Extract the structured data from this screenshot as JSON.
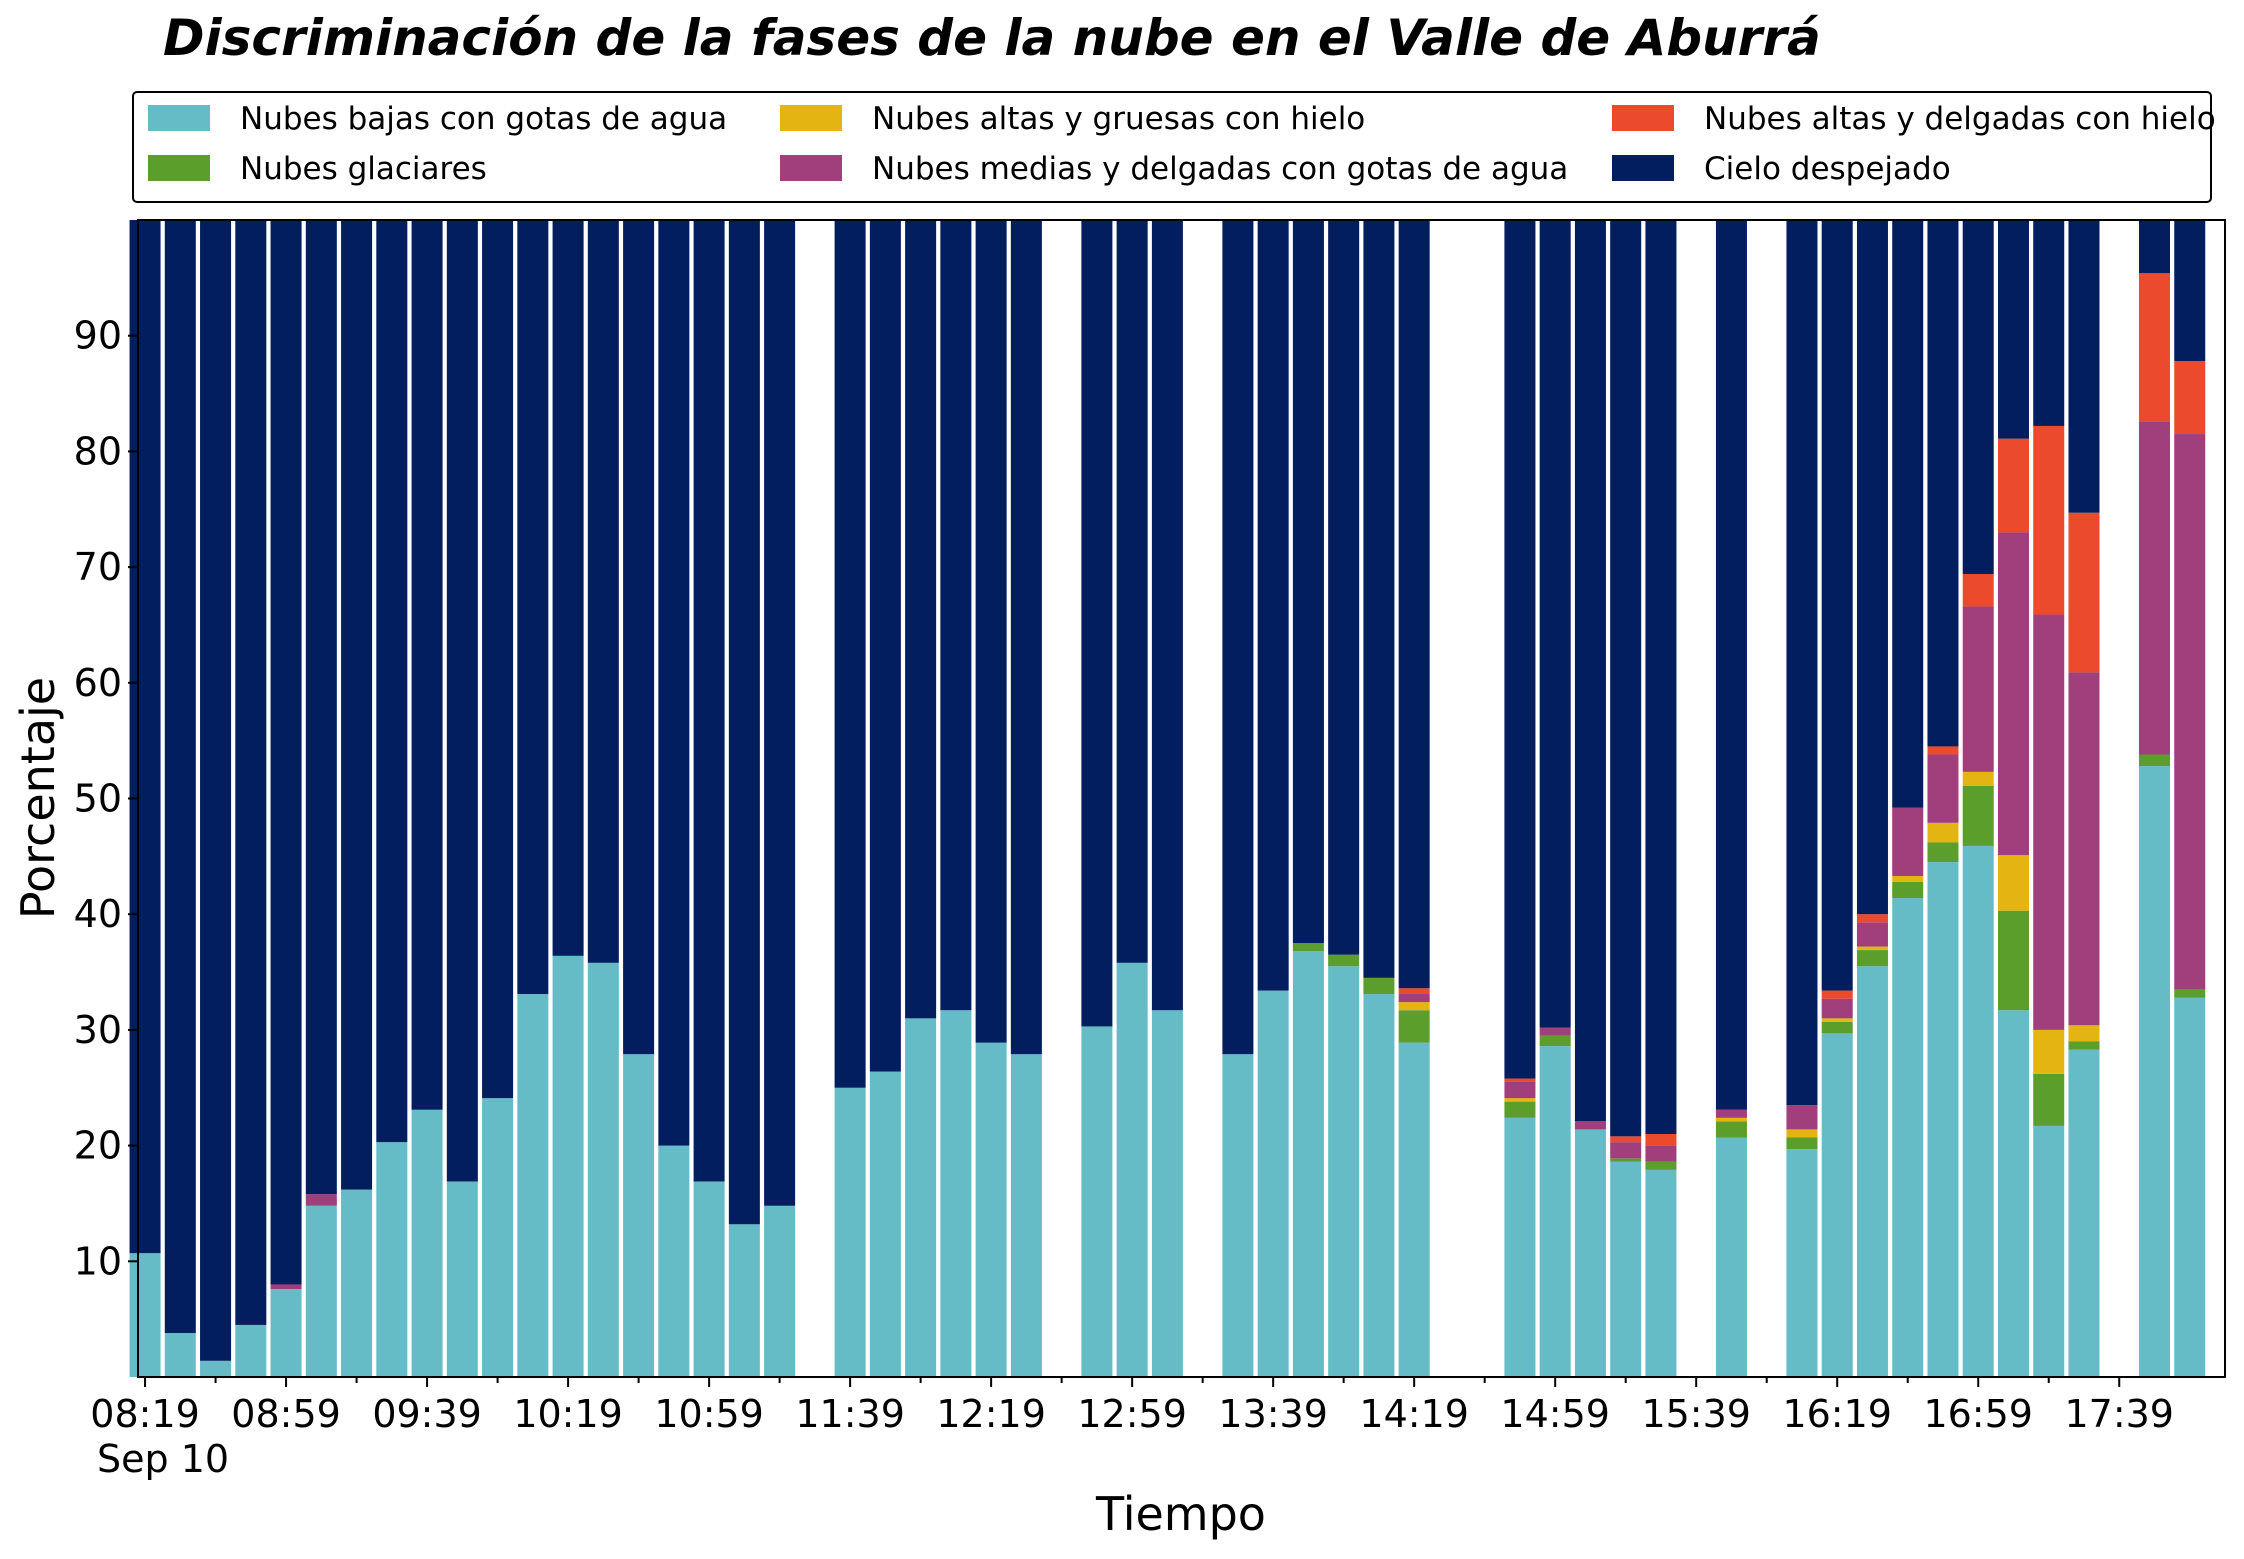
{
  "chart_data": {
    "type": "bar",
    "stacked": true,
    "title": "Discriminación de la fases de la nube en el Valle de Aburrá",
    "xlabel": "Tiempo",
    "ylabel": "Porcentaje",
    "x_date_label": "Sep 10",
    "ylim": [
      0,
      100
    ],
    "y_ticks": [
      10,
      20,
      30,
      40,
      50,
      60,
      70,
      80,
      90
    ],
    "x_tick_labels": [
      "08:19",
      "08:59",
      "09:39",
      "10:19",
      "10:59",
      "11:39",
      "12:19",
      "12:59",
      "13:39",
      "14:19",
      "14:59",
      "15:39",
      "16:19",
      "16:59",
      "17:39"
    ],
    "x_tick_minutes": [
      499,
      539,
      579,
      619,
      659,
      699,
      739,
      779,
      819,
      859,
      899,
      939,
      979,
      1019,
      1059
    ],
    "x_range_minutes": [
      497,
      1089
    ],
    "legend_position": "top",
    "grid": false,
    "series": [
      {
        "name": "Nubes bajas con gotas de agua",
        "color": "#65BCC7"
      },
      {
        "name": "Nubes glaciares",
        "color": "#5B9E2B"
      },
      {
        "name": "Nubes altas y gruesas con hielo",
        "color": "#E4B412"
      },
      {
        "name": "Nubes medias y delgadas con gotas de agua",
        "color": "#A03F7B"
      },
      {
        "name": "Nubes altas y delgadas con hielo",
        "color": "#EB4A2C"
      },
      {
        "name": "Cielo despejado",
        "color": "#031E5E"
      }
    ],
    "bars": [
      {
        "t": "08:19",
        "values": [
          10.7,
          0,
          0,
          0,
          0,
          89.3
        ]
      },
      {
        "t": "08:29",
        "values": [
          3.8,
          0,
          0,
          0,
          0,
          96.2
        ]
      },
      {
        "t": "08:39",
        "values": [
          1.4,
          0,
          0,
          0,
          0,
          98.6
        ]
      },
      {
        "t": "08:49",
        "values": [
          4.5,
          0,
          0,
          0,
          0,
          95.5
        ]
      },
      {
        "t": "08:59",
        "values": [
          7.6,
          0,
          0,
          0.4,
          0,
          92.0
        ]
      },
      {
        "t": "09:09",
        "values": [
          14.8,
          0,
          0,
          1.0,
          0,
          84.2
        ]
      },
      {
        "t": "09:19",
        "values": [
          16.2,
          0,
          0,
          0,
          0,
          83.8
        ]
      },
      {
        "t": "09:29",
        "values": [
          20.3,
          0,
          0,
          0,
          0,
          79.7
        ]
      },
      {
        "t": "09:39",
        "values": [
          23.1,
          0,
          0,
          0,
          0,
          76.9
        ]
      },
      {
        "t": "09:49",
        "values": [
          16.9,
          0,
          0,
          0,
          0,
          83.1
        ]
      },
      {
        "t": "09:59",
        "values": [
          24.1,
          0,
          0,
          0,
          0,
          75.9
        ]
      },
      {
        "t": "10:09",
        "values": [
          33.1,
          0,
          0,
          0,
          0,
          66.9
        ]
      },
      {
        "t": "10:19",
        "values": [
          36.4,
          0,
          0,
          0,
          0,
          63.6
        ]
      },
      {
        "t": "10:29",
        "values": [
          35.8,
          0,
          0,
          0,
          0,
          64.2
        ]
      },
      {
        "t": "10:39",
        "values": [
          27.9,
          0,
          0,
          0,
          0,
          72.1
        ]
      },
      {
        "t": "10:49",
        "values": [
          20.0,
          0,
          0,
          0,
          0,
          80.0
        ]
      },
      {
        "t": "10:59",
        "values": [
          16.9,
          0,
          0,
          0,
          0,
          83.1
        ]
      },
      {
        "t": "11:09",
        "values": [
          13.2,
          0,
          0,
          0,
          0,
          86.8
        ]
      },
      {
        "t": "11:19",
        "values": [
          14.8,
          0,
          0,
          0,
          0,
          85.2
        ]
      },
      {
        "t": "11:39",
        "values": [
          25.0,
          0,
          0,
          0,
          0,
          75.0
        ]
      },
      {
        "t": "11:49",
        "values": [
          26.4,
          0,
          0,
          0,
          0,
          73.6
        ]
      },
      {
        "t": "11:59",
        "values": [
          31.0,
          0,
          0,
          0,
          0,
          69.0
        ]
      },
      {
        "t": "12:09",
        "values": [
          31.7,
          0,
          0,
          0,
          0,
          68.3
        ]
      },
      {
        "t": "12:19",
        "values": [
          28.9,
          0,
          0,
          0,
          0,
          71.1
        ]
      },
      {
        "t": "12:29",
        "values": [
          27.9,
          0,
          0,
          0,
          0,
          72.1
        ]
      },
      {
        "t": "12:49",
        "values": [
          30.3,
          0,
          0,
          0,
          0,
          69.7
        ]
      },
      {
        "t": "12:59",
        "values": [
          35.8,
          0,
          0,
          0,
          0,
          64.2
        ]
      },
      {
        "t": "13:09",
        "values": [
          31.7,
          0,
          0,
          0,
          0,
          68.3
        ]
      },
      {
        "t": "13:29",
        "values": [
          27.9,
          0,
          0,
          0,
          0,
          72.1
        ]
      },
      {
        "t": "13:39",
        "values": [
          33.4,
          0,
          0,
          0,
          0,
          66.6
        ]
      },
      {
        "t": "13:49",
        "values": [
          36.8,
          0.7,
          0,
          0,
          0,
          62.5
        ]
      },
      {
        "t": "13:59",
        "values": [
          35.5,
          1.0,
          0,
          0,
          0,
          63.5
        ]
      },
      {
        "t": "14:09",
        "values": [
          33.1,
          1.4,
          0,
          0,
          0,
          65.5
        ]
      },
      {
        "t": "14:19",
        "values": [
          28.9,
          2.8,
          0.7,
          0.7,
          0.5,
          66.4
        ]
      },
      {
        "t": "14:49",
        "values": [
          22.4,
          1.4,
          0.3,
          1.4,
          0.3,
          74.2
        ]
      },
      {
        "t": "14:59",
        "values": [
          28.6,
          0.9,
          0,
          0.7,
          0,
          69.8
        ]
      },
      {
        "t": "15:09",
        "values": [
          21.4,
          0,
          0,
          0.7,
          0,
          77.9
        ]
      },
      {
        "t": "15:19",
        "values": [
          18.6,
          0.3,
          0,
          1.4,
          0.5,
          79.2
        ]
      },
      {
        "t": "15:29",
        "values": [
          17.9,
          0.7,
          0,
          1.4,
          1.0,
          79.0
        ]
      },
      {
        "t": "15:49",
        "values": [
          20.7,
          1.4,
          0.3,
          0.7,
          0,
          76.9
        ]
      },
      {
        "t": "16:09",
        "values": [
          19.7,
          1.0,
          0.7,
          2.1,
          0,
          76.5
        ]
      },
      {
        "t": "16:19",
        "values": [
          29.7,
          1.0,
          0.3,
          1.7,
          0.7,
          66.6
        ]
      },
      {
        "t": "16:29",
        "values": [
          35.5,
          1.4,
          0.3,
          2.1,
          0.7,
          60.0
        ]
      },
      {
        "t": "16:39",
        "values": [
          41.4,
          1.4,
          0.5,
          5.9,
          0,
          50.8
        ]
      },
      {
        "t": "16:49",
        "values": [
          44.5,
          1.7,
          1.7,
          5.9,
          0.7,
          45.5
        ]
      },
      {
        "t": "16:59",
        "values": [
          45.9,
          5.2,
          1.2,
          14.3,
          2.8,
          30.6
        ]
      },
      {
        "t": "17:09",
        "values": [
          31.7,
          8.6,
          4.8,
          27.9,
          8.1,
          18.9
        ]
      },
      {
        "t": "17:19",
        "values": [
          21.7,
          4.5,
          3.8,
          35.9,
          16.3,
          17.8
        ]
      },
      {
        "t": "17:29",
        "values": [
          28.3,
          0.7,
          1.4,
          30.5,
          13.8,
          25.3
        ]
      },
      {
        "t": "17:49",
        "values": [
          52.8,
          1.0,
          0,
          28.8,
          12.8,
          4.6
        ]
      },
      {
        "t": "17:59",
        "values": [
          32.8,
          0.7,
          0,
          48.0,
          6.3,
          12.2
        ]
      }
    ]
  }
}
